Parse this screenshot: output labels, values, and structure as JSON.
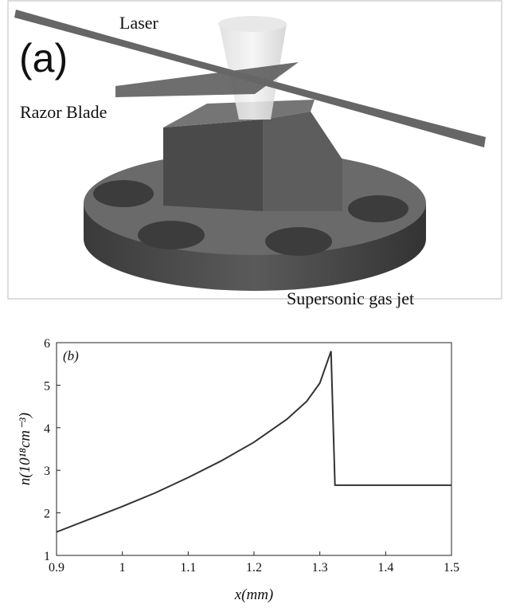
{
  "figure_a": {
    "panel_label": "(a)",
    "labels": [
      "Laser",
      "Razor Blade",
      "Supersonic gas jet"
    ]
  },
  "chart_data": {
    "type": "line",
    "annotation": "(b)",
    "x_label": "x(mm)",
    "y_label": "n(10¹⁸cm⁻³)",
    "x": [
      0.9,
      0.95,
      1.0,
      1.05,
      1.1,
      1.15,
      1.2,
      1.25,
      1.28,
      1.3,
      1.317,
      1.323,
      1.4,
      1.5
    ],
    "series": [
      {
        "color": "#333333",
        "values": [
          1.55,
          1.85,
          2.15,
          2.47,
          2.83,
          3.22,
          3.66,
          4.2,
          4.62,
          5.05,
          5.8,
          2.65,
          2.65,
          2.65
        ]
      }
    ],
    "xlim": [
      0.9,
      1.5
    ],
    "xticks": [
      0.9,
      1,
      1.1,
      1.2,
      1.3,
      1.4,
      1.5
    ],
    "ylim": [
      1,
      6
    ],
    "yticks": [
      1,
      2,
      3,
      4,
      5,
      6
    ]
  }
}
